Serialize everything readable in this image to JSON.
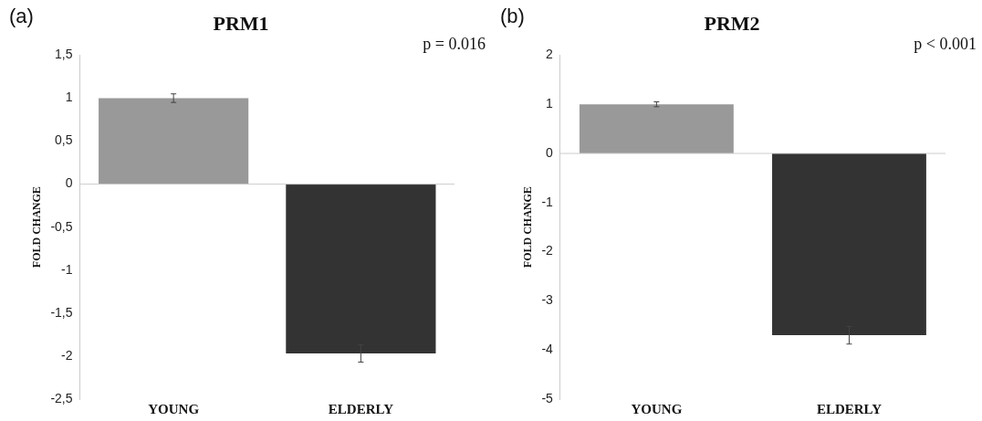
{
  "chart_data": [
    {
      "type": "bar",
      "title": "PRM1",
      "ylabel": "FOLD CHANGE",
      "categories": [
        "YOUNG",
        "ELDERLY"
      ],
      "values": [
        1.0,
        -1.97
      ],
      "colors": [
        "#999999",
        "#333333"
      ],
      "errors": [
        0.05,
        0.1
      ],
      "ylim": [
        -2.5,
        1.5
      ],
      "yticks": [
        {
          "value": 1.5,
          "label": "1,5"
        },
        1,
        {
          "value": 0.5,
          "label": "0,5"
        },
        0,
        {
          "value": -0.5,
          "label": "-0,5"
        },
        -1,
        {
          "value": -1.5,
          "label": "-1,5"
        },
        -2,
        {
          "value": -2.5,
          "label": "-2,5"
        }
      ],
      "grid": false,
      "legend": false,
      "ref_lines": [
        {
          "axis": "y",
          "value": 0,
          "color": "#cccccc"
        }
      ],
      "annotations": [
        "(a)",
        "p = 0.016"
      ]
    },
    {
      "type": "bar",
      "title": "PRM2",
      "ylabel": "FOLD CHANGE",
      "categories": [
        "YOUNG",
        "ELDERLY"
      ],
      "values": [
        1.0,
        -3.7
      ],
      "colors": [
        "#999999",
        "#333333"
      ],
      "errors": [
        0.05,
        0.18
      ],
      "ylim": [
        -5,
        2
      ],
      "yticks": [
        2,
        1,
        0,
        -1,
        -2,
        -3,
        -4,
        -5
      ],
      "grid": false,
      "legend": false,
      "ref_lines": [
        {
          "axis": "y",
          "value": 0,
          "color": "#cccccc"
        }
      ],
      "annotations": [
        "(b)",
        "p < 0.001"
      ]
    }
  ]
}
